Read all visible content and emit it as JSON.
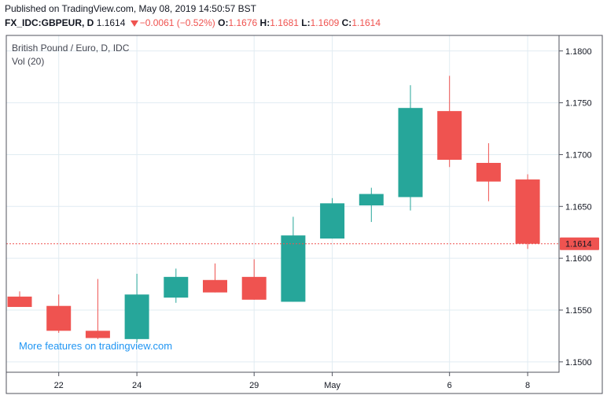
{
  "header": {
    "published": "Published on TradingView.com, May 08, 2019 14:50:57 BST",
    "symbol": "FX_IDC:GBPEUR, D",
    "last": "1.1614",
    "change": "−0.0061 (−0.52%)",
    "open_label": "O:",
    "open_value": "1.1676",
    "high_label": "H:",
    "high_value": "1.1681",
    "low_label": "L:",
    "low_value": "1.1609",
    "close_label": "C:",
    "close_value": "1.1614"
  },
  "legend": {
    "title": "British Pound / Euro, D, IDC",
    "volume": "Vol (20)"
  },
  "watermark": "More features on tradingview.com",
  "colors": {
    "up": "#26a69a",
    "down": "#ef5350",
    "grid": "#e1ecf2",
    "axis": "#50535e",
    "price_line": "#ef5350"
  },
  "chart_data": {
    "type": "candlestick",
    "title": "British Pound / Euro, D, IDC",
    "ylim": [
      1.149,
      1.1815
    ],
    "y_ticks": [
      "1.1500",
      "1.1550",
      "1.1600",
      "1.1650",
      "1.1700",
      "1.1750",
      "1.1800"
    ],
    "x_ticks": [
      {
        "label": "22",
        "index": 1
      },
      {
        "label": "24",
        "index": 3
      },
      {
        "label": "29",
        "index": 6
      },
      {
        "label": "May",
        "index": 8
      },
      {
        "label": "6",
        "index": 11
      },
      {
        "label": "8",
        "index": 13
      }
    ],
    "last_price": "1.1614",
    "candles": [
      {
        "o": 1.1563,
        "h": 1.1568,
        "l": 1.1553,
        "c": 1.1553
      },
      {
        "o": 1.1554,
        "h": 1.1565,
        "l": 1.1528,
        "c": 1.153
      },
      {
        "o": 1.153,
        "h": 1.158,
        "l": 1.1522,
        "c": 1.1523
      },
      {
        "o": 1.1522,
        "h": 1.1585,
        "l": 1.1519,
        "c": 1.1565
      },
      {
        "o": 1.1562,
        "h": 1.159,
        "l": 1.1557,
        "c": 1.1582
      },
      {
        "o": 1.1579,
        "h": 1.1595,
        "l": 1.1567,
        "c": 1.1567
      },
      {
        "o": 1.1582,
        "h": 1.1599,
        "l": 1.156,
        "c": 1.156
      },
      {
        "o": 1.1558,
        "h": 1.164,
        "l": 1.1558,
        "c": 1.1622
      },
      {
        "o": 1.1619,
        "h": 1.1658,
        "l": 1.1619,
        "c": 1.1653
      },
      {
        "o": 1.1651,
        "h": 1.1668,
        "l": 1.1635,
        "c": 1.1662
      },
      {
        "o": 1.1659,
        "h": 1.1767,
        "l": 1.1646,
        "c": 1.1745
      },
      {
        "o": 1.1742,
        "h": 1.1776,
        "l": 1.1688,
        "c": 1.1695
      },
      {
        "o": 1.1692,
        "h": 1.1711,
        "l": 1.1655,
        "c": 1.1674
      },
      {
        "o": 1.1676,
        "h": 1.1681,
        "l": 1.1609,
        "c": 1.1614
      }
    ]
  }
}
